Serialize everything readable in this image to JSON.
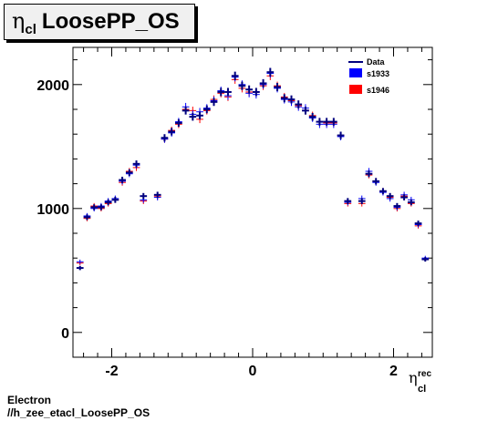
{
  "title": {
    "symbol": "η",
    "subscript": "cl",
    "text": "LoosePP_OS"
  },
  "footer": {
    "line1": "Electron",
    "line2": "//h_zee_etacl_LoosePP_OS"
  },
  "colors": {
    "data": "#00007f",
    "s1933": "#0000ff",
    "s1946": "#ff0000"
  },
  "chart_data": {
    "type": "scatter",
    "title": "η cl LoosePP_OS",
    "xlabel": "η cl rec",
    "ylabel": "",
    "xlim": [
      -2.55,
      2.55
    ],
    "ylim": [
      -200,
      2300
    ],
    "xticks": [
      -2,
      0,
      2
    ],
    "yticks": [
      0,
      1000,
      2000
    ],
    "legend_position": "top-right",
    "x": [
      -2.45,
      -2.35,
      -2.25,
      -2.15,
      -2.05,
      -1.95,
      -1.85,
      -1.75,
      -1.65,
      -1.55,
      -1.35,
      -1.25,
      -1.15,
      -1.05,
      -0.95,
      -0.85,
      -0.75,
      -0.65,
      -0.55,
      -0.45,
      -0.35,
      -0.25,
      -0.15,
      -0.05,
      0.05,
      0.15,
      0.25,
      0.35,
      0.45,
      0.55,
      0.65,
      0.75,
      0.85,
      0.95,
      1.05,
      1.15,
      1.25,
      1.35,
      1.55,
      1.65,
      1.75,
      1.85,
      1.95,
      2.05,
      2.15,
      2.25,
      2.35,
      2.45
    ],
    "series": [
      {
        "name": "Data",
        "values": [
          520,
          930,
          1010,
          1010,
          1050,
          1070,
          1230,
          1290,
          1360,
          1100,
          1110,
          1570,
          1620,
          1690,
          1790,
          1740,
          1750,
          1800,
          1860,
          1940,
          1940,
          2070,
          1990,
          1960,
          1940,
          2010,
          2100,
          1980,
          1890,
          1880,
          1840,
          1790,
          1740,
          1700,
          1700,
          1700,
          1590,
          1060,
          1060,
          1280,
          1220,
          1140,
          1100,
          1020,
          1090,
          1050,
          880,
          590
        ]
      },
      {
        "name": "s1933",
        "values": [
          570,
          940,
          1000,
          1020,
          1060,
          1080,
          1220,
          1280,
          1350,
          1070,
          1090,
          1560,
          1610,
          1700,
          1820,
          1760,
          1780,
          1810,
          1870,
          1950,
          1910,
          2060,
          2000,
          1930,
          1920,
          2000,
          2090,
          1970,
          1880,
          1860,
          1820,
          1810,
          1730,
          1680,
          1680,
          1680,
          1580,
          1050,
          1080,
          1300,
          1210,
          1130,
          1080,
          1010,
          1110,
          1070,
          870,
          600
        ]
      },
      {
        "name": "s1946",
        "values": [
          560,
          920,
          1020,
          1000,
          1040,
          1070,
          1210,
          1300,
          1330,
          1060,
          1100,
          1560,
          1630,
          1680,
          1800,
          1790,
          1720,
          1790,
          1880,
          1930,
          1900,
          2040,
          1970,
          1940,
          1940,
          1990,
          2070,
          1990,
          1900,
          1870,
          1830,
          1790,
          1750,
          1700,
          1690,
          1690,
          1590,
          1040,
          1040,
          1270,
          1220,
          1140,
          1090,
          1000,
          1100,
          1040,
          860,
          590
        ]
      }
    ]
  }
}
